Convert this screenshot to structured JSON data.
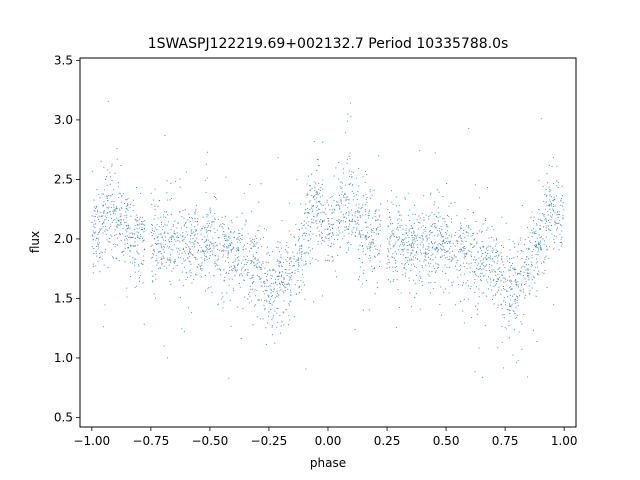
{
  "chart_data": {
    "type": "scatter",
    "title": "1SWASPJ122219.69+002132.7 Period 10335788.0s",
    "xlabel": "phase",
    "ylabel": "flux",
    "xlim": [
      -1.05,
      1.05
    ],
    "ylim": [
      0.42,
      3.52
    ],
    "xticks": [
      -1.0,
      -0.75,
      -0.5,
      -0.25,
      0.0,
      0.25,
      0.5,
      0.75,
      1.0
    ],
    "xtick_labels": [
      "−1.00",
      "−0.75",
      "−0.50",
      "−0.25",
      "0.00",
      "0.25",
      "0.50",
      "0.75",
      "1.00"
    ],
    "yticks": [
      0.5,
      1.0,
      1.5,
      2.0,
      2.5,
      3.0,
      3.5
    ],
    "ytick_labels": [
      "0.5",
      "1.0",
      "1.5",
      "2.0",
      "2.5",
      "3.0",
      "3.5"
    ],
    "grid": false,
    "legend": "none",
    "marker_color": "#1f77b4",
    "series": [
      {
        "phase_range": [
          -1.0,
          1.0
        ],
        "mean_flux_profile": {
          "phase": [
            0.0,
            0.05,
            0.08,
            0.1,
            0.15,
            0.2,
            0.25,
            0.3,
            0.4,
            0.5,
            0.55,
            0.6,
            0.65,
            0.7,
            0.75,
            0.8,
            0.85,
            0.9,
            0.95,
            1.0
          ],
          "flux": [
            2.0,
            2.2,
            2.3,
            2.25,
            2.05,
            2.0,
            2.0,
            2.0,
            1.95,
            1.95,
            1.9,
            1.85,
            1.8,
            1.75,
            1.55,
            1.65,
            1.75,
            2.0,
            2.3,
            2.05
          ]
        },
        "gaps": [
          [
            0.225,
            0.25
          ],
          [
            -0.775,
            -0.75
          ]
        ]
      }
    ]
  }
}
